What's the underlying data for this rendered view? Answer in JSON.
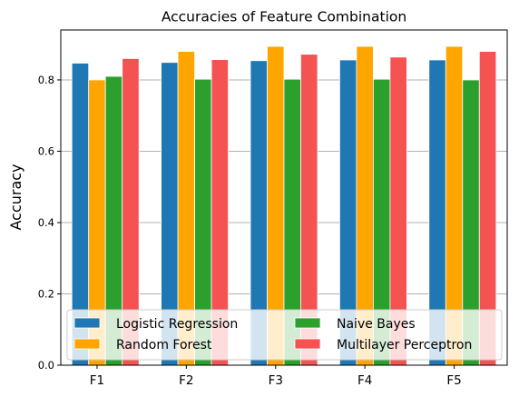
{
  "chart_data": {
    "type": "bar",
    "title": "Accuracies of Feature Combination",
    "xlabel": "",
    "ylabel": "Accuracy",
    "ylim": [
      0,
      0.94
    ],
    "yticks": [
      "0.0",
      "0.2",
      "0.4",
      "0.6",
      "0.8"
    ],
    "categories": [
      "F1",
      "F2",
      "F3",
      "F4",
      "F5"
    ],
    "grid": "y",
    "legend_position": "lower-left",
    "series": [
      {
        "name": "Logistic Regression",
        "color": "#1f77b4",
        "values": [
          0.847,
          0.849,
          0.854,
          0.856,
          0.856
        ]
      },
      {
        "name": "Random Forest",
        "color": "#ffa500",
        "values": [
          0.8,
          0.88,
          0.894,
          0.894,
          0.894
        ]
      },
      {
        "name": "Naive Bayes",
        "color": "#2ca02c",
        "values": [
          0.81,
          0.802,
          0.802,
          0.802,
          0.8
        ]
      },
      {
        "name": "Multilayer Perceptron",
        "color": "#f55252",
        "values": [
          0.86,
          0.857,
          0.872,
          0.864,
          0.88
        ]
      }
    ]
  }
}
